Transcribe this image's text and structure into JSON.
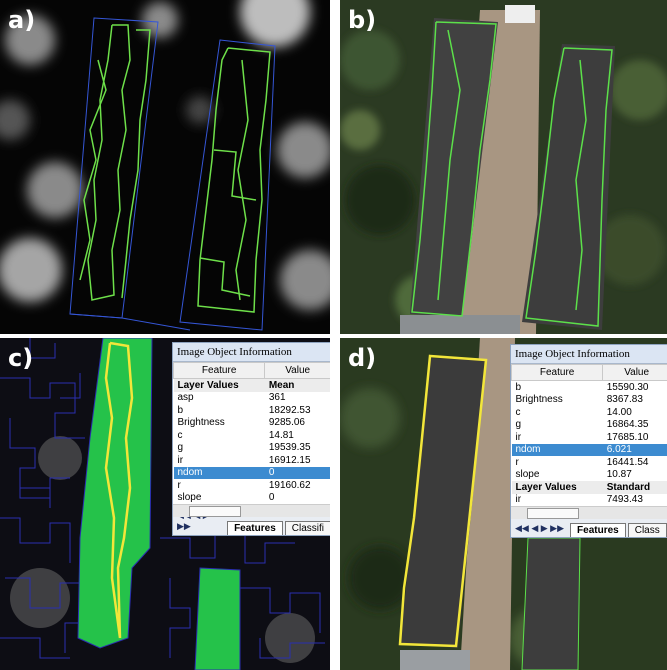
{
  "panels": [
    {
      "label": "a)"
    },
    {
      "label": "b)"
    },
    {
      "label": "c)",
      "info": {
        "title": "Image Object Information",
        "columns": [
          "Feature",
          "Value"
        ],
        "rows": [
          [
            "Layer Values",
            "Mean"
          ],
          [
            "asp",
            "361"
          ],
          [
            "b",
            "18292.53"
          ],
          [
            "Brightness",
            "9285.06"
          ],
          [
            "c",
            "14.81"
          ],
          [
            "g",
            "19539.35"
          ],
          [
            "ir",
            "16912.15"
          ],
          [
            "ndom",
            "0"
          ],
          [
            "r",
            "19160.62"
          ],
          [
            "slope",
            "0"
          ]
        ],
        "bold_rows": [
          0
        ],
        "highlight_row": 7,
        "tabs": [
          "Features",
          "Classifi"
        ]
      }
    },
    {
      "label": "d)",
      "info": {
        "title": "Image Object Information",
        "columns": [
          "Feature",
          "Value"
        ],
        "rows": [
          [
            "b",
            "15590.30"
          ],
          [
            "Brightness",
            "8367.83"
          ],
          [
            "c",
            "14.00"
          ],
          [
            "g",
            "16864.35"
          ],
          [
            "ir",
            "17685.10"
          ],
          [
            "ndom",
            "6.021"
          ],
          [
            "r",
            "16441.54"
          ],
          [
            "slope",
            "10.87"
          ],
          [
            "Layer Values",
            "Standard"
          ],
          [
            "ir",
            "7493.43"
          ]
        ],
        "bold_rows": [
          8
        ],
        "highlight_row": 5,
        "tabs": [
          "Features",
          "Class"
        ]
      }
    }
  ]
}
